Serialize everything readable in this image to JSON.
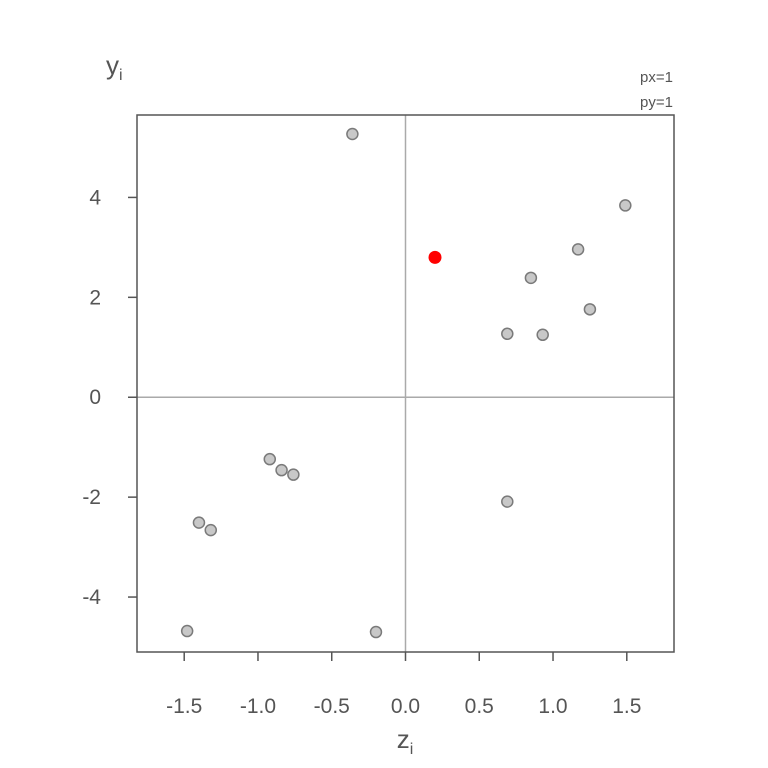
{
  "chart_data": {
    "type": "scatter",
    "xlabel": "z",
    "xlabel_sub": "i",
    "ylabel": "y",
    "ylabel_sub": "i",
    "annotations": [
      "px=1",
      "py=1"
    ],
    "xlim": [
      -1.82,
      1.82
    ],
    "ylim": [
      -5.1,
      5.65
    ],
    "x_ticks": [
      -1.5,
      -1.0,
      -0.5,
      0.0,
      0.5,
      1.0,
      1.5
    ],
    "x_tick_labels": [
      "-1.5",
      "-1.0",
      "-0.5",
      "0.0",
      "0.5",
      "1.0",
      "1.5"
    ],
    "y_ticks": [
      -4,
      -2,
      0,
      2,
      4
    ],
    "y_tick_labels": [
      "-4",
      "-2",
      "0",
      "2",
      "4"
    ],
    "grid": false,
    "reference_lines": {
      "x": 0,
      "y": 0
    },
    "points": [
      {
        "x": -0.36,
        "y": 5.27
      },
      {
        "x": 1.49,
        "y": 3.84
      },
      {
        "x": 1.17,
        "y": 2.96
      },
      {
        "x": 0.85,
        "y": 2.39
      },
      {
        "x": 1.25,
        "y": 1.76
      },
      {
        "x": 0.69,
        "y": 1.27
      },
      {
        "x": 0.93,
        "y": 1.25
      },
      {
        "x": -0.92,
        "y": -1.24
      },
      {
        "x": -0.84,
        "y": -1.46
      },
      {
        "x": -0.76,
        "y": -1.55
      },
      {
        "x": 0.69,
        "y": -2.09
      },
      {
        "x": -1.4,
        "y": -2.51
      },
      {
        "x": -1.32,
        "y": -2.66
      },
      {
        "x": -1.48,
        "y": -4.68
      },
      {
        "x": -0.2,
        "y": -4.7
      }
    ],
    "highlight_point": {
      "x": 0.2,
      "y": 2.8
    },
    "colors": {
      "point_fill": "#c8c8c8",
      "point_stroke": "#7a7a7a",
      "highlight": "#ff0000",
      "reference_line": "#aaaaaa",
      "frame": "#555555"
    }
  }
}
